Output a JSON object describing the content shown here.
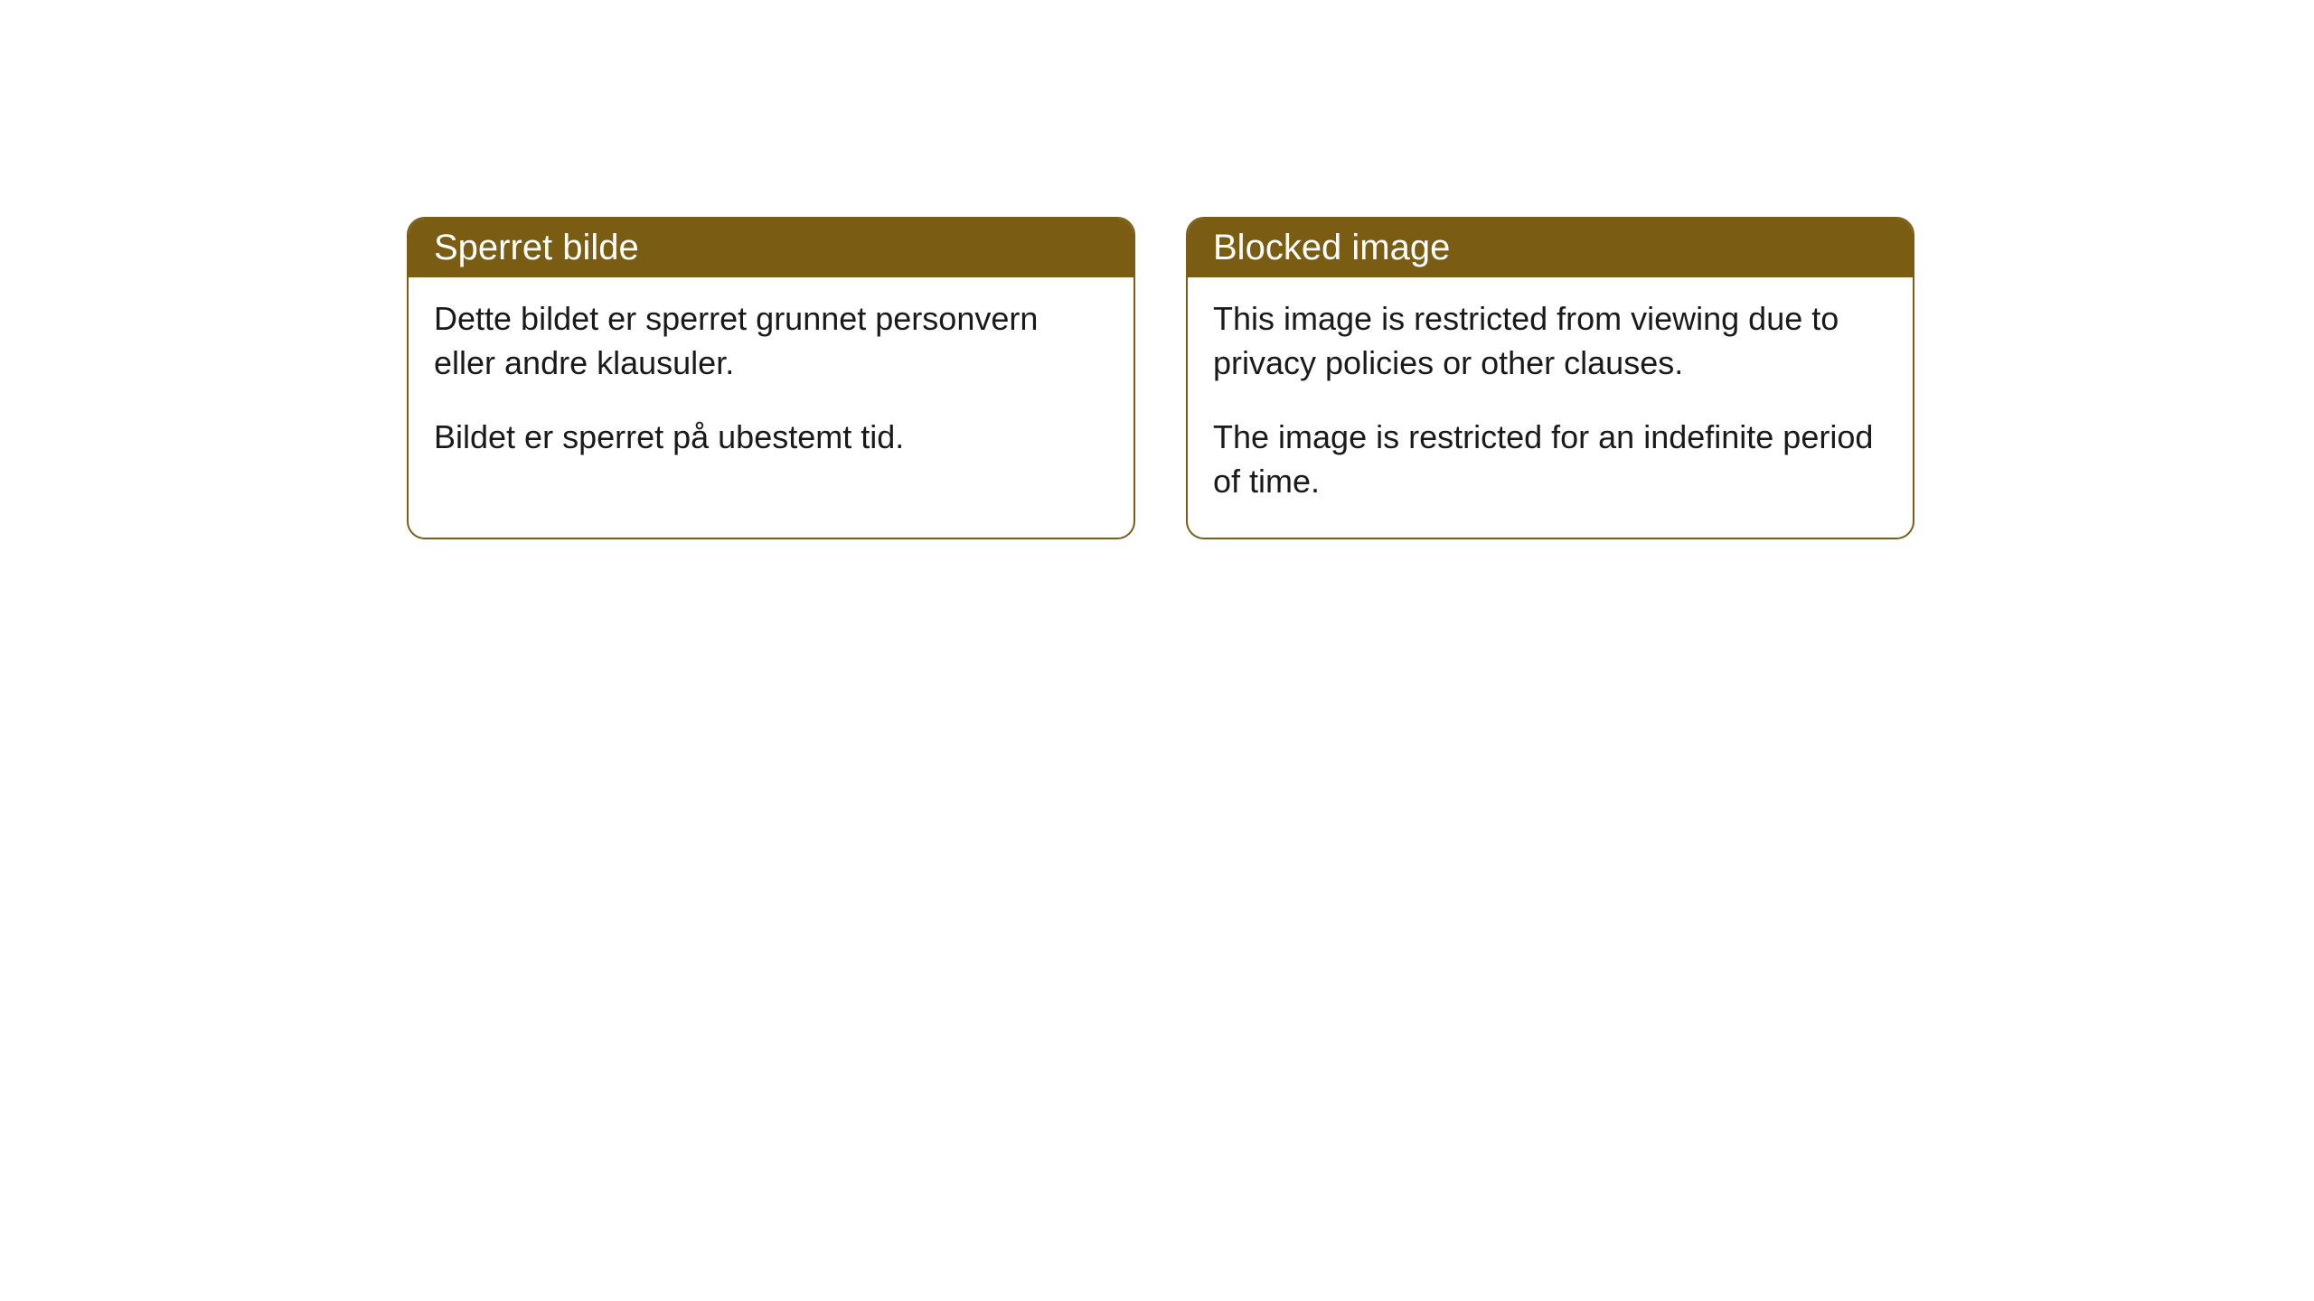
{
  "cards": [
    {
      "title": "Sperret bilde",
      "paragraphs": [
        "Dette bildet er sperret grunnet personvern eller andre klausuler.",
        "Bildet er sperret på ubestemt tid."
      ]
    },
    {
      "title": "Blocked image",
      "paragraphs": [
        "This image is restricted from viewing due to privacy policies or other clauses.",
        "The image is restricted for an indefinite period of time."
      ]
    }
  ],
  "styling": {
    "header_bg_color": "#7a5d12",
    "header_text_color": "#ffffff",
    "border_color": "#7a5d12",
    "body_text_color": "#1a1a1a",
    "background_color": "#ffffff",
    "border_radius": 20,
    "header_fontsize": 40,
    "body_fontsize": 36
  }
}
